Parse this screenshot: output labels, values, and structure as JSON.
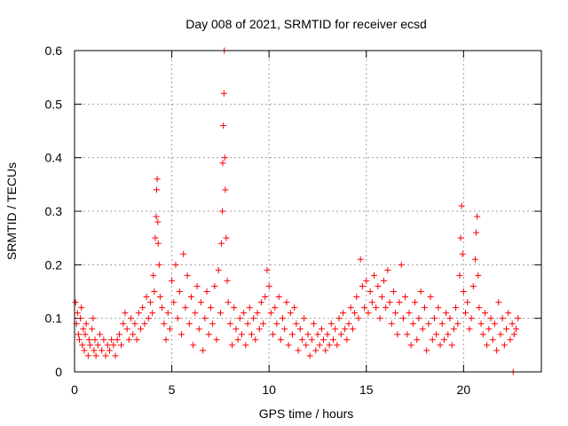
{
  "chart_data": {
    "type": "scatter",
    "title": "Day 008 of 2021, SRMTID for receiver ecsd",
    "xlabel": "GPS time / hours",
    "ylabel": "SRMTID / TECUs",
    "xlim": [
      0,
      24
    ],
    "ylim": [
      0,
      0.6
    ],
    "xticks": [
      0,
      5,
      10,
      15,
      20
    ],
    "xtick_labels": [
      "0",
      "5",
      "10",
      "15",
      "20"
    ],
    "yticks": [
      0,
      0.1,
      0.2,
      0.3,
      0.4,
      0.5,
      0.6
    ],
    "ytick_labels": [
      "0",
      "0.1",
      "0.2",
      "0.3",
      "0.4",
      "0.5",
      "0.6"
    ],
    "grid": true,
    "marker": "+",
    "color": "#ff0000",
    "series": [
      {
        "name": "SRMTID",
        "points": [
          [
            0.05,
            0.13
          ],
          [
            0.1,
            0.09
          ],
          [
            0.15,
            0.11
          ],
          [
            0.2,
            0.07
          ],
          [
            0.25,
            0.06
          ],
          [
            0.3,
            0.1
          ],
          [
            0.35,
            0.12
          ],
          [
            0.4,
            0.05
          ],
          [
            0.45,
            0.08
          ],
          [
            0.5,
            0.04
          ],
          [
            0.55,
            0.07
          ],
          [
            0.6,
            0.09
          ],
          [
            0.7,
            0.03
          ],
          [
            0.75,
            0.06
          ],
          [
            0.8,
            0.05
          ],
          [
            0.9,
            0.08
          ],
          [
            0.95,
            0.1
          ],
          [
            1.0,
            0.04
          ],
          [
            1.05,
            0.06
          ],
          [
            1.1,
            0.03
          ],
          [
            1.2,
            0.05
          ],
          [
            1.3,
            0.07
          ],
          [
            1.4,
            0.04
          ],
          [
            1.5,
            0.06
          ],
          [
            1.6,
            0.03
          ],
          [
            1.7,
            0.05
          ],
          [
            1.8,
            0.04
          ],
          [
            1.9,
            0.06
          ],
          [
            2.0,
            0.05
          ],
          [
            2.1,
            0.03
          ],
          [
            2.2,
            0.06
          ],
          [
            2.3,
            0.07
          ],
          [
            2.4,
            0.05
          ],
          [
            2.5,
            0.09
          ],
          [
            2.6,
            0.11
          ],
          [
            2.7,
            0.08
          ],
          [
            2.8,
            0.06
          ],
          [
            2.9,
            0.1
          ],
          [
            3.0,
            0.07
          ],
          [
            3.1,
            0.09
          ],
          [
            3.2,
            0.06
          ],
          [
            3.3,
            0.11
          ],
          [
            3.4,
            0.08
          ],
          [
            3.5,
            0.12
          ],
          [
            3.6,
            0.09
          ],
          [
            3.7,
            0.14
          ],
          [
            3.8,
            0.1
          ],
          [
            3.9,
            0.13
          ],
          [
            4.0,
            0.11
          ],
          [
            4.05,
            0.18
          ],
          [
            4.1,
            0.15
          ],
          [
            4.15,
            0.25
          ],
          [
            4.2,
            0.29
          ],
          [
            4.22,
            0.34
          ],
          [
            4.25,
            0.36
          ],
          [
            4.28,
            0.28
          ],
          [
            4.3,
            0.24
          ],
          [
            4.35,
            0.2
          ],
          [
            4.4,
            0.14
          ],
          [
            4.5,
            0.12
          ],
          [
            4.6,
            0.09
          ],
          [
            4.7,
            0.06
          ],
          [
            4.8,
            0.11
          ],
          [
            4.9,
            0.08
          ],
          [
            5.0,
            0.17
          ],
          [
            5.1,
            0.13
          ],
          [
            5.2,
            0.2
          ],
          [
            5.3,
            0.1
          ],
          [
            5.4,
            0.15
          ],
          [
            5.5,
            0.07
          ],
          [
            5.6,
            0.22
          ],
          [
            5.7,
            0.12
          ],
          [
            5.8,
            0.18
          ],
          [
            5.9,
            0.09
          ],
          [
            6.0,
            0.14
          ],
          [
            6.1,
            0.05
          ],
          [
            6.2,
            0.11
          ],
          [
            6.3,
            0.16
          ],
          [
            6.4,
            0.08
          ],
          [
            6.5,
            0.13
          ],
          [
            6.6,
            0.04
          ],
          [
            6.7,
            0.1
          ],
          [
            6.8,
            0.15
          ],
          [
            6.9,
            0.07
          ],
          [
            7.0,
            0.12
          ],
          [
            7.1,
            0.09
          ],
          [
            7.2,
            0.16
          ],
          [
            7.3,
            0.06
          ],
          [
            7.4,
            0.19
          ],
          [
            7.5,
            0.11
          ],
          [
            7.55,
            0.24
          ],
          [
            7.6,
            0.3
          ],
          [
            7.62,
            0.39
          ],
          [
            7.65,
            0.46
          ],
          [
            7.68,
            0.52
          ],
          [
            7.7,
            0.6
          ],
          [
            7.72,
            0.4
          ],
          [
            7.75,
            0.34
          ],
          [
            7.8,
            0.25
          ],
          [
            7.85,
            0.17
          ],
          [
            7.9,
            0.13
          ],
          [
            8.0,
            0.09
          ],
          [
            8.1,
            0.05
          ],
          [
            8.2,
            0.12
          ],
          [
            8.3,
            0.08
          ],
          [
            8.4,
            0.06
          ],
          [
            8.5,
            0.1
          ],
          [
            8.6,
            0.07
          ],
          [
            8.7,
            0.11
          ],
          [
            8.8,
            0.05
          ],
          [
            8.9,
            0.09
          ],
          [
            9.0,
            0.12
          ],
          [
            9.1,
            0.07
          ],
          [
            9.2,
            0.1
          ],
          [
            9.3,
            0.06
          ],
          [
            9.4,
            0.11
          ],
          [
            9.5,
            0.08
          ],
          [
            9.6,
            0.13
          ],
          [
            9.7,
            0.09
          ],
          [
            9.8,
            0.14
          ],
          [
            9.9,
            0.19
          ],
          [
            10.0,
            0.16
          ],
          [
            10.1,
            0.11
          ],
          [
            10.2,
            0.07
          ],
          [
            10.3,
            0.12
          ],
          [
            10.4,
            0.09
          ],
          [
            10.5,
            0.14
          ],
          [
            10.6,
            0.06
          ],
          [
            10.7,
            0.1
          ],
          [
            10.8,
            0.08
          ],
          [
            10.9,
            0.13
          ],
          [
            11.0,
            0.05
          ],
          [
            11.1,
            0.11
          ],
          [
            11.2,
            0.07
          ],
          [
            11.3,
            0.12
          ],
          [
            11.4,
            0.09
          ],
          [
            11.5,
            0.04
          ],
          [
            11.6,
            0.08
          ],
          [
            11.7,
            0.06
          ],
          [
            11.8,
            0.1
          ],
          [
            11.9,
            0.05
          ],
          [
            12.0,
            0.07
          ],
          [
            12.1,
            0.03
          ],
          [
            12.2,
            0.06
          ],
          [
            12.3,
            0.09
          ],
          [
            12.4,
            0.04
          ],
          [
            12.5,
            0.07
          ],
          [
            12.6,
            0.05
          ],
          [
            12.7,
            0.08
          ],
          [
            12.8,
            0.06
          ],
          [
            12.9,
            0.04
          ],
          [
            13.0,
            0.07
          ],
          [
            13.1,
            0.05
          ],
          [
            13.2,
            0.09
          ],
          [
            13.3,
            0.06
          ],
          [
            13.4,
            0.08
          ],
          [
            13.5,
            0.05
          ],
          [
            13.6,
            0.1
          ],
          [
            13.7,
            0.07
          ],
          [
            13.8,
            0.11
          ],
          [
            13.9,
            0.08
          ],
          [
            14.0,
            0.06
          ],
          [
            14.1,
            0.09
          ],
          [
            14.2,
            0.12
          ],
          [
            14.3,
            0.08
          ],
          [
            14.4,
            0.11
          ],
          [
            14.5,
            0.14
          ],
          [
            14.6,
            0.1
          ],
          [
            14.7,
            0.21
          ],
          [
            14.8,
            0.16
          ],
          [
            14.9,
            0.12
          ],
          [
            15.0,
            0.17
          ],
          [
            15.1,
            0.11
          ],
          [
            15.2,
            0.15
          ],
          [
            15.3,
            0.13
          ],
          [
            15.4,
            0.18
          ],
          [
            15.5,
            0.12
          ],
          [
            15.6,
            0.16
          ],
          [
            15.7,
            0.1
          ],
          [
            15.8,
            0.14
          ],
          [
            15.9,
            0.17
          ],
          [
            16.0,
            0.12
          ],
          [
            16.1,
            0.19
          ],
          [
            16.2,
            0.13
          ],
          [
            16.3,
            0.09
          ],
          [
            16.4,
            0.15
          ],
          [
            16.5,
            0.11
          ],
          [
            16.6,
            0.07
          ],
          [
            16.7,
            0.13
          ],
          [
            16.8,
            0.2
          ],
          [
            16.9,
            0.1
          ],
          [
            17.0,
            0.14
          ],
          [
            17.1,
            0.07
          ],
          [
            17.2,
            0.11
          ],
          [
            17.3,
            0.05
          ],
          [
            17.4,
            0.09
          ],
          [
            17.5,
            0.13
          ],
          [
            17.6,
            0.06
          ],
          [
            17.7,
            0.1
          ],
          [
            17.8,
            0.15
          ],
          [
            17.9,
            0.08
          ],
          [
            18.0,
            0.12
          ],
          [
            18.1,
            0.04
          ],
          [
            18.2,
            0.09
          ],
          [
            18.3,
            0.14
          ],
          [
            18.4,
            0.06
          ],
          [
            18.5,
            0.1
          ],
          [
            18.6,
            0.07
          ],
          [
            18.7,
            0.12
          ],
          [
            18.8,
            0.05
          ],
          [
            18.9,
            0.09
          ],
          [
            19.0,
            0.06
          ],
          [
            19.1,
            0.11
          ],
          [
            19.2,
            0.07
          ],
          [
            19.3,
            0.1
          ],
          [
            19.4,
            0.05
          ],
          [
            19.5,
            0.08
          ],
          [
            19.6,
            0.12
          ],
          [
            19.7,
            0.09
          ],
          [
            19.8,
            0.18
          ],
          [
            19.85,
            0.25
          ],
          [
            19.9,
            0.31
          ],
          [
            19.95,
            0.22
          ],
          [
            20.0,
            0.15
          ],
          [
            20.1,
            0.11
          ],
          [
            20.2,
            0.13
          ],
          [
            20.3,
            0.08
          ],
          [
            20.4,
            0.1
          ],
          [
            20.5,
            0.16
          ],
          [
            20.6,
            0.21
          ],
          [
            20.65,
            0.26
          ],
          [
            20.7,
            0.29
          ],
          [
            20.75,
            0.18
          ],
          [
            20.8,
            0.12
          ],
          [
            20.9,
            0.09
          ],
          [
            21.0,
            0.07
          ],
          [
            21.1,
            0.11
          ],
          [
            21.2,
            0.05
          ],
          [
            21.3,
            0.08
          ],
          [
            21.4,
            0.1
          ],
          [
            21.5,
            0.06
          ],
          [
            21.6,
            0.09
          ],
          [
            21.7,
            0.04
          ],
          [
            21.8,
            0.13
          ],
          [
            21.9,
            0.07
          ],
          [
            22.0,
            0.1
          ],
          [
            22.1,
            0.05
          ],
          [
            22.2,
            0.08
          ],
          [
            22.3,
            0.11
          ],
          [
            22.4,
            0.06
          ],
          [
            22.5,
            0.09
          ],
          [
            22.55,
            0.0
          ],
          [
            22.6,
            0.07
          ],
          [
            22.7,
            0.08
          ],
          [
            22.8,
            0.1
          ]
        ]
      }
    ]
  }
}
